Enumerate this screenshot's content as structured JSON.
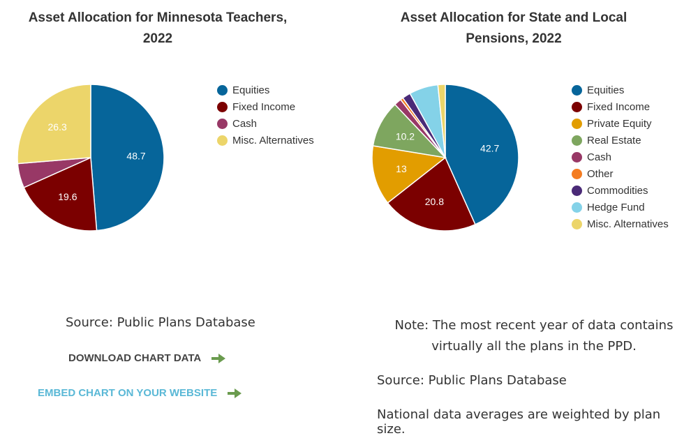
{
  "colors": {
    "equities": "#06659a",
    "fixed_income": "#7b0000",
    "private_equity": "#e29d00",
    "real_estate": "#7ea65f",
    "cash": "#983866",
    "other": "#f47c20",
    "commodities": "#4a2a77",
    "hedge_fund": "#84d2e8",
    "misc_alternatives": "#ecd56a",
    "arrow": "#6a9b4e"
  },
  "chart_data": [
    {
      "type": "pie",
      "title": "Asset Allocation for Minnesota Teachers, 2022",
      "legend_position": "right",
      "slices": [
        {
          "label": "Equities",
          "value": 48.7,
          "color": "#06659a",
          "data_label": "48.7"
        },
        {
          "label": "Fixed Income",
          "value": 19.6,
          "color": "#7b0000",
          "data_label": "19.6"
        },
        {
          "label": "Cash",
          "value": 5.4,
          "color": "#983866",
          "data_label": ""
        },
        {
          "label": "Misc. Alternatives",
          "value": 26.3,
          "color": "#ecd56a",
          "data_label": "26.3"
        }
      ]
    },
    {
      "type": "pie",
      "title": "Asset Allocation for State and Local Pensions, 2022",
      "legend_position": "right",
      "slices": [
        {
          "label": "Equities",
          "value": 42.7,
          "color": "#06659a",
          "data_label": "42.7"
        },
        {
          "label": "Fixed Income",
          "value": 20.8,
          "color": "#7b0000",
          "data_label": "20.8"
        },
        {
          "label": "Private Equity",
          "value": 13,
          "color": "#e29d00",
          "data_label": "13"
        },
        {
          "label": "Real Estate",
          "value": 10.2,
          "color": "#7ea65f",
          "data_label": "10.2"
        },
        {
          "label": "Cash",
          "value": 1.6,
          "color": "#983866",
          "data_label": ""
        },
        {
          "label": "Other",
          "value": 0.6,
          "color": "#f47c20",
          "data_label": ""
        },
        {
          "label": "Commodities",
          "value": 1.8,
          "color": "#4a2a77",
          "data_label": ""
        },
        {
          "label": "Hedge Fund",
          "value": 6.3,
          "color": "#84d2e8",
          "data_label": ""
        },
        {
          "label": "Misc. Alternatives",
          "value": 1.6,
          "color": "#ecd56a",
          "data_label": ""
        }
      ]
    }
  ],
  "left": {
    "title_line1": "Asset Allocation for Minnesota Teachers,",
    "title_line2": "2022",
    "source": "Source: Public Plans Database",
    "download_label": "DOWNLOAD CHART DATA",
    "embed_label": "EMBED CHART ON YOUR WEBSITE"
  },
  "right": {
    "title_line1": "Asset Allocation for State and Local",
    "title_line2": "Pensions, 2022",
    "note_line1": "Note: The most recent year of data contains",
    "note_line2": "virtually all the plans in the PPD.",
    "source": "Source: Public Plans Database",
    "weight_note": "National data averages are weighted by plan size."
  },
  "icons": {
    "download_arrow": "arrow-right-icon",
    "embed_arrow": "arrow-right-icon"
  }
}
